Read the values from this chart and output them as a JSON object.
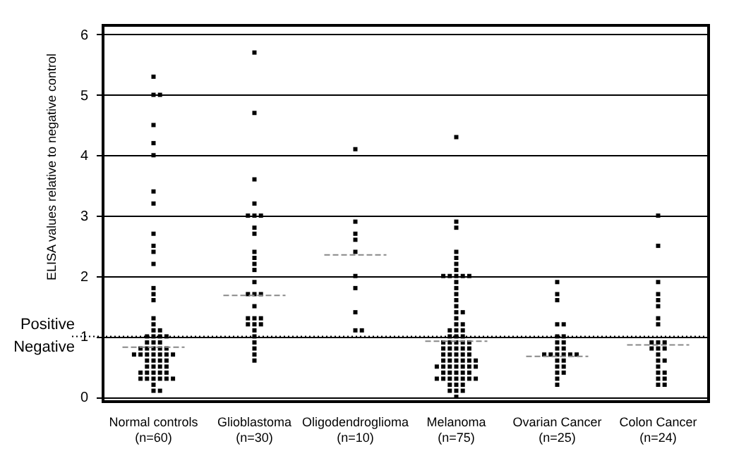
{
  "chart_data": {
    "type": "scatter",
    "ylabel": "ELISA values relative to negative control",
    "categories": [
      "Normal controls\n(n=60)",
      "Glioblastoma\n(n=30)",
      "Oligodendroglioma\n(n=10)",
      "Melanoma\n(n=75)",
      "Ovarian Cancer\n(n=25)",
      "Colon Cancer\n(n=24)"
    ],
    "ylim": [
      -0.08,
      6.15
    ],
    "yticks": [
      0,
      1,
      2,
      3,
      4,
      5,
      6
    ],
    "grid": "y",
    "ref_lines": [
      {
        "axis": "y",
        "value": 1,
        "line_style": "dotted"
      },
      {
        "axis": "y",
        "value": 0.82,
        "color": "#888888",
        "line_style": "dashed"
      },
      {
        "axis": "y",
        "value": 1.68,
        "color": "#888888",
        "line_style": "dashed"
      },
      {
        "axis": "y",
        "value": 2.35,
        "color": "#888888",
        "line_style": "dashed"
      },
      {
        "axis": "y",
        "value": 0.92,
        "color": "#888888",
        "line_style": "dashed"
      },
      {
        "axis": "y",
        "value": 0.67,
        "color": "#888888",
        "line_style": "dashed"
      },
      {
        "axis": "y",
        "value": 0.86,
        "color": "#888888",
        "line_style": "dashed"
      }
    ],
    "annotations": [
      "Positive",
      "Negative"
    ],
    "series": [
      {
        "type": "scatter",
        "marker": "square",
        "color": "#000000",
        "x": [
          "Normal controls\n(n=60)",
          "Normal controls\n(n=60)",
          "Normal controls\n(n=60)",
          "Normal controls\n(n=60)",
          "Normal controls\n(n=60)",
          "Normal controls\n(n=60)",
          "Normal controls\n(n=60)",
          "Normal controls\n(n=60)",
          "Normal controls\n(n=60)",
          "Normal controls\n(n=60)",
          "Normal controls\n(n=60)",
          "Normal controls\n(n=60)",
          "Normal controls\n(n=60)",
          "Normal controls\n(n=60)",
          "Normal controls\n(n=60)",
          "Normal controls\n(n=60)",
          "Normal controls\n(n=60)",
          "Normal controls\n(n=60)",
          "Normal controls\n(n=60)",
          "Normal controls\n(n=60)",
          "Normal controls\n(n=60)",
          "Normal controls\n(n=60)",
          "Normal controls\n(n=60)",
          "Normal controls\n(n=60)",
          "Normal controls\n(n=60)",
          "Normal controls\n(n=60)",
          "Normal controls\n(n=60)",
          "Normal controls\n(n=60)",
          "Normal controls\n(n=60)",
          "Normal controls\n(n=60)",
          "Normal controls\n(n=60)",
          "Normal controls\n(n=60)",
          "Normal controls\n(n=60)",
          "Normal controls\n(n=60)",
          "Normal controls\n(n=60)",
          "Normal controls\n(n=60)",
          "Normal controls\n(n=60)",
          "Normal controls\n(n=60)",
          "Normal controls\n(n=60)",
          "Normal controls\n(n=60)",
          "Normal controls\n(n=60)",
          "Normal controls\n(n=60)",
          "Normal controls\n(n=60)",
          "Normal controls\n(n=60)",
          "Normal controls\n(n=60)",
          "Normal controls\n(n=60)",
          "Normal controls\n(n=60)",
          "Normal controls\n(n=60)",
          "Normal controls\n(n=60)",
          "Normal controls\n(n=60)",
          "Normal controls\n(n=60)",
          "Normal controls\n(n=60)",
          "Normal controls\n(n=60)",
          "Normal controls\n(n=60)",
          "Normal controls\n(n=60)",
          "Normal controls\n(n=60)",
          "Normal controls\n(n=60)",
          "Normal controls\n(n=60)",
          "Normal controls\n(n=60)",
          "Normal controls\n(n=60)"
        ],
        "values": [
          5.3,
          5.0,
          5.0,
          4.5,
          4.2,
          4.0,
          3.4,
          3.2,
          2.7,
          2.5,
          2.4,
          2.2,
          1.8,
          1.7,
          1.6,
          1.3,
          1.2,
          1.1,
          1.1,
          1.0,
          1.0,
          1.0,
          1.0,
          0.9,
          0.9,
          0.9,
          0.8,
          0.8,
          0.8,
          0.8,
          0.8,
          0.7,
          0.7,
          0.7,
          0.7,
          0.7,
          0.7,
          0.7,
          0.6,
          0.6,
          0.6,
          0.6,
          0.5,
          0.5,
          0.5,
          0.5,
          0.4,
          0.4,
          0.4,
          0.4,
          0.4,
          0.3,
          0.3,
          0.3,
          0.3,
          0.3,
          0.3,
          0.2,
          0.1,
          0.1
        ]
      },
      {
        "type": "scatter",
        "marker": "square",
        "color": "#000000",
        "x": [
          "Glioblastoma\n(n=30)",
          "Glioblastoma\n(n=30)",
          "Glioblastoma\n(n=30)",
          "Glioblastoma\n(n=30)",
          "Glioblastoma\n(n=30)",
          "Glioblastoma\n(n=30)",
          "Glioblastoma\n(n=30)",
          "Glioblastoma\n(n=30)",
          "Glioblastoma\n(n=30)",
          "Glioblastoma\n(n=30)",
          "Glioblastoma\n(n=30)",
          "Glioblastoma\n(n=30)",
          "Glioblastoma\n(n=30)",
          "Glioblastoma\n(n=30)",
          "Glioblastoma\n(n=30)",
          "Glioblastoma\n(n=30)",
          "Glioblastoma\n(n=30)",
          "Glioblastoma\n(n=30)",
          "Glioblastoma\n(n=30)",
          "Glioblastoma\n(n=30)",
          "Glioblastoma\n(n=30)",
          "Glioblastoma\n(n=30)",
          "Glioblastoma\n(n=30)",
          "Glioblastoma\n(n=30)",
          "Glioblastoma\n(n=30)",
          "Glioblastoma\n(n=30)",
          "Glioblastoma\n(n=30)",
          "Glioblastoma\n(n=30)",
          "Glioblastoma\n(n=30)",
          "Glioblastoma\n(n=30)"
        ],
        "values": [
          5.7,
          4.7,
          3.6,
          3.2,
          3.0,
          3.0,
          3.0,
          2.8,
          2.7,
          2.4,
          2.3,
          2.2,
          2.1,
          1.9,
          1.7,
          1.7,
          1.7,
          1.5,
          1.3,
          1.3,
          1.3,
          1.2,
          1.2,
          1.2,
          1.1,
          1.0,
          0.9,
          0.8,
          0.7,
          0.6
        ]
      },
      {
        "type": "scatter",
        "marker": "square",
        "color": "#000000",
        "x": [
          "Oligodendroglioma\n(n=10)",
          "Oligodendroglioma\n(n=10)",
          "Oligodendroglioma\n(n=10)",
          "Oligodendroglioma\n(n=10)",
          "Oligodendroglioma\n(n=10)",
          "Oligodendroglioma\n(n=10)",
          "Oligodendroglioma\n(n=10)",
          "Oligodendroglioma\n(n=10)",
          "Oligodendroglioma\n(n=10)",
          "Oligodendroglioma\n(n=10)"
        ],
        "values": [
          4.1,
          2.9,
          2.7,
          2.6,
          2.4,
          2.0,
          1.8,
          1.4,
          1.1,
          1.1
        ]
      },
      {
        "type": "scatter",
        "marker": "square",
        "color": "#000000",
        "x": [
          "Melanoma\n(n=75)",
          "Melanoma\n(n=75)",
          "Melanoma\n(n=75)",
          "Melanoma\n(n=75)",
          "Melanoma\n(n=75)",
          "Melanoma\n(n=75)",
          "Melanoma\n(n=75)",
          "Melanoma\n(n=75)",
          "Melanoma\n(n=75)",
          "Melanoma\n(n=75)",
          "Melanoma\n(n=75)",
          "Melanoma\n(n=75)",
          "Melanoma\n(n=75)",
          "Melanoma\n(n=75)",
          "Melanoma\n(n=75)",
          "Melanoma\n(n=75)",
          "Melanoma\n(n=75)",
          "Melanoma\n(n=75)",
          "Melanoma\n(n=75)",
          "Melanoma\n(n=75)",
          "Melanoma\n(n=75)",
          "Melanoma\n(n=75)",
          "Melanoma\n(n=75)",
          "Melanoma\n(n=75)",
          "Melanoma\n(n=75)",
          "Melanoma\n(n=75)",
          "Melanoma\n(n=75)",
          "Melanoma\n(n=75)",
          "Melanoma\n(n=75)",
          "Melanoma\n(n=75)",
          "Melanoma\n(n=75)",
          "Melanoma\n(n=75)",
          "Melanoma\n(n=75)",
          "Melanoma\n(n=75)",
          "Melanoma\n(n=75)",
          "Melanoma\n(n=75)",
          "Melanoma\n(n=75)",
          "Melanoma\n(n=75)",
          "Melanoma\n(n=75)",
          "Melanoma\n(n=75)",
          "Melanoma\n(n=75)",
          "Melanoma\n(n=75)",
          "Melanoma\n(n=75)",
          "Melanoma\n(n=75)",
          "Melanoma\n(n=75)",
          "Melanoma\n(n=75)",
          "Melanoma\n(n=75)",
          "Melanoma\n(n=75)",
          "Melanoma\n(n=75)",
          "Melanoma\n(n=75)",
          "Melanoma\n(n=75)",
          "Melanoma\n(n=75)",
          "Melanoma\n(n=75)",
          "Melanoma\n(n=75)",
          "Melanoma\n(n=75)",
          "Melanoma\n(n=75)",
          "Melanoma\n(n=75)",
          "Melanoma\n(n=75)",
          "Melanoma\n(n=75)",
          "Melanoma\n(n=75)",
          "Melanoma\n(n=75)",
          "Melanoma\n(n=75)",
          "Melanoma\n(n=75)",
          "Melanoma\n(n=75)",
          "Melanoma\n(n=75)",
          "Melanoma\n(n=75)",
          "Melanoma\n(n=75)",
          "Melanoma\n(n=75)",
          "Melanoma\n(n=75)",
          "Melanoma\n(n=75)",
          "Melanoma\n(n=75)",
          "Melanoma\n(n=75)",
          "Melanoma\n(n=75)",
          "Melanoma\n(n=75)",
          "Melanoma\n(n=75)"
        ],
        "values": [
          4.3,
          2.9,
          2.8,
          2.4,
          2.3,
          2.2,
          2.1,
          2.0,
          2.0,
          2.0,
          2.0,
          2.0,
          1.9,
          1.8,
          1.7,
          1.6,
          1.5,
          1.4,
          1.4,
          1.3,
          1.2,
          1.2,
          1.1,
          1.1,
          1.1,
          1.0,
          1.0,
          1.0,
          0.9,
          0.9,
          0.9,
          0.9,
          0.9,
          0.8,
          0.8,
          0.8,
          0.8,
          0.8,
          0.7,
          0.7,
          0.7,
          0.7,
          0.7,
          0.6,
          0.6,
          0.6,
          0.6,
          0.6,
          0.6,
          0.5,
          0.5,
          0.5,
          0.5,
          0.5,
          0.5,
          0.5,
          0.4,
          0.4,
          0.4,
          0.4,
          0.4,
          0.3,
          0.3,
          0.3,
          0.3,
          0.3,
          0.3,
          0.3,
          0.2,
          0.2,
          0.2,
          0.1,
          0.1,
          0.1,
          0.0
        ]
      },
      {
        "type": "scatter",
        "marker": "square",
        "color": "#000000",
        "x": [
          "Ovarian Cancer\n(n=25)",
          "Ovarian Cancer\n(n=25)",
          "Ovarian Cancer\n(n=25)",
          "Ovarian Cancer\n(n=25)",
          "Ovarian Cancer\n(n=25)",
          "Ovarian Cancer\n(n=25)",
          "Ovarian Cancer\n(n=25)",
          "Ovarian Cancer\n(n=25)",
          "Ovarian Cancer\n(n=25)",
          "Ovarian Cancer\n(n=25)",
          "Ovarian Cancer\n(n=25)",
          "Ovarian Cancer\n(n=25)",
          "Ovarian Cancer\n(n=25)",
          "Ovarian Cancer\n(n=25)",
          "Ovarian Cancer\n(n=25)",
          "Ovarian Cancer\n(n=25)",
          "Ovarian Cancer\n(n=25)",
          "Ovarian Cancer\n(n=25)",
          "Ovarian Cancer\n(n=25)",
          "Ovarian Cancer\n(n=25)",
          "Ovarian Cancer\n(n=25)",
          "Ovarian Cancer\n(n=25)",
          "Ovarian Cancer\n(n=25)",
          "Ovarian Cancer\n(n=25)",
          "Ovarian Cancer\n(n=25)"
        ],
        "values": [
          1.9,
          1.7,
          1.6,
          1.2,
          1.2,
          1.0,
          1.0,
          0.9,
          0.9,
          0.8,
          0.8,
          0.7,
          0.7,
          0.7,
          0.7,
          0.7,
          0.7,
          0.6,
          0.6,
          0.5,
          0.5,
          0.4,
          0.4,
          0.3,
          0.2
        ]
      },
      {
        "type": "scatter",
        "marker": "square",
        "color": "#000000",
        "x": [
          "Colon Cancer\n(n=24)",
          "Colon Cancer\n(n=24)",
          "Colon Cancer\n(n=24)",
          "Colon Cancer\n(n=24)",
          "Colon Cancer\n(n=24)",
          "Colon Cancer\n(n=24)",
          "Colon Cancer\n(n=24)",
          "Colon Cancer\n(n=24)",
          "Colon Cancer\n(n=24)",
          "Colon Cancer\n(n=24)",
          "Colon Cancer\n(n=24)",
          "Colon Cancer\n(n=24)",
          "Colon Cancer\n(n=24)",
          "Colon Cancer\n(n=24)",
          "Colon Cancer\n(n=24)",
          "Colon Cancer\n(n=24)",
          "Colon Cancer\n(n=24)",
          "Colon Cancer\n(n=24)",
          "Colon Cancer\n(n=24)",
          "Colon Cancer\n(n=24)",
          "Colon Cancer\n(n=24)",
          "Colon Cancer\n(n=24)",
          "Colon Cancer\n(n=24)",
          "Colon Cancer\n(n=24)"
        ],
        "values": [
          3.0,
          2.5,
          1.9,
          1.7,
          1.6,
          1.5,
          1.3,
          1.2,
          0.9,
          0.9,
          0.9,
          0.8,
          0.8,
          0.8,
          0.7,
          0.6,
          0.6,
          0.5,
          0.4,
          0.4,
          0.3,
          0.3,
          0.2,
          0.2
        ]
      }
    ]
  }
}
